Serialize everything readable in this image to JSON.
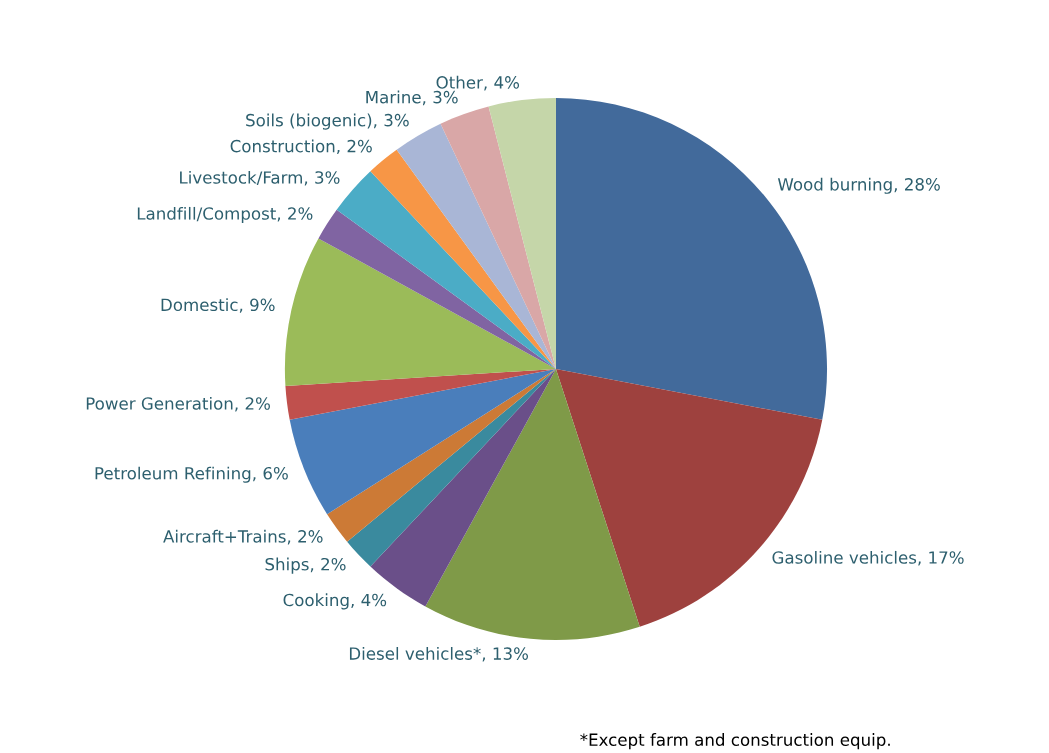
{
  "chart_data": {
    "type": "pie",
    "categories": [
      "Wood burning",
      "Gasoline vehicles",
      "Diesel vehicles*",
      "Cooking",
      "Ships",
      "Aircraft+Trains",
      "Petroleum Refining",
      "Power Generation",
      "Domestic",
      "Landfill/Compost",
      "Livestock/Farm",
      "Construction",
      "Soils (biogenic)",
      "Marine",
      "Other"
    ],
    "values": [
      28,
      17,
      13,
      4,
      2,
      2,
      6,
      2,
      9,
      2,
      3,
      2,
      3,
      3,
      4
    ],
    "value_labels": [
      "28%",
      "17%",
      "13%",
      "4%",
      "2%",
      "2%",
      "6%",
      "2%",
      "9%",
      "2%",
      "3%",
      "2%",
      "3%",
      "3%",
      "4%"
    ],
    "colors": [
      "#426a9b",
      "#9e413e",
      "#7f9a48",
      "#6a4f89",
      "#3a8a9e",
      "#cc7a36",
      "#4a7ebb",
      "#c0504d",
      "#9bbb59",
      "#8064a2",
      "#4bacc6",
      "#f79646",
      "#a9b6d6",
      "#d9a7a7",
      "#c5d6a9"
    ],
    "annotations": [
      "*Except farm and construction equip."
    ]
  }
}
